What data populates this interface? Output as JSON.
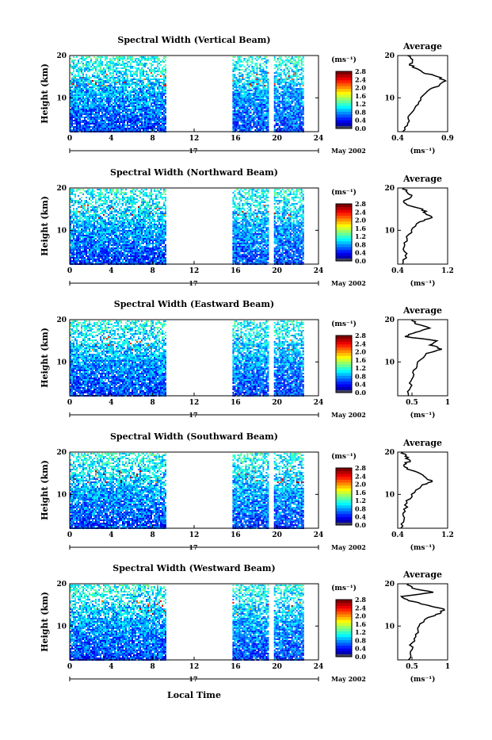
{
  "figure": {
    "xlabel": "Local Time",
    "date_label": "May 2002",
    "day_label": "17",
    "cbar_unit": "(ms⁻¹)",
    "avg_title": "Average",
    "avg_unit": "(ms⁻¹)",
    "ylabel": "Height (km)"
  },
  "chart_data": [
    {
      "type": "heatmap",
      "title": "Spectral Width (Vertical Beam)",
      "xlim": [
        0,
        24
      ],
      "xticks": [
        0,
        4,
        8,
        12,
        16,
        20,
        24
      ],
      "ylim": [
        2,
        20
      ],
      "yticks": [
        10,
        20
      ],
      "data_segments_hours": [
        [
          0,
          9.2
        ],
        [
          15.7,
          19.2
        ],
        [
          19.7,
          22.5
        ]
      ],
      "colorbar": {
        "ticks": [
          0.0,
          0.4,
          0.8,
          1.2,
          1.6,
          2.0,
          2.4,
          2.8
        ],
        "label": "(ms⁻¹)"
      },
      "average_profile": {
        "xlim": [
          0.4,
          0.9
        ],
        "xticks": [
          0.4,
          0.9
        ],
        "heights": [
          2,
          4,
          6,
          8,
          10,
          12,
          13,
          14,
          15,
          16,
          17,
          18,
          19,
          20
        ],
        "values": [
          0.45,
          0.5,
          0.52,
          0.58,
          0.63,
          0.72,
          0.82,
          0.88,
          0.8,
          0.65,
          0.58,
          0.52,
          0.55,
          0.5
        ]
      }
    },
    {
      "type": "heatmap",
      "title": "Spectral Width (Northward Beam)",
      "xlim": [
        0,
        24
      ],
      "xticks": [
        0,
        4,
        8,
        12,
        16,
        20,
        24
      ],
      "ylim": [
        2,
        20
      ],
      "yticks": [
        10,
        20
      ],
      "data_segments_hours": [
        [
          0,
          9.2
        ],
        [
          15.7,
          19.2
        ],
        [
          19.7,
          22.5
        ]
      ],
      "colorbar": {
        "ticks": [
          0.0,
          0.4,
          0.8,
          1.2,
          1.6,
          2.0,
          2.4,
          2.8
        ],
        "label": "(ms⁻¹)"
      },
      "average_profile": {
        "xlim": [
          0.4,
          1.2
        ],
        "xticks": [
          0.4,
          1.2
        ],
        "heights": [
          2,
          4,
          6,
          8,
          10,
          12,
          13,
          14,
          15,
          16,
          17,
          18,
          19,
          20
        ],
        "values": [
          0.48,
          0.52,
          0.5,
          0.55,
          0.62,
          0.75,
          0.95,
          0.85,
          0.8,
          0.55,
          0.5,
          0.62,
          0.55,
          0.5
        ]
      }
    },
    {
      "type": "heatmap",
      "title": "Spectral Width (Eastward Beam)",
      "xlim": [
        0,
        24
      ],
      "xticks": [
        0,
        4,
        8,
        12,
        16,
        20,
        24
      ],
      "ylim": [
        2,
        20
      ],
      "yticks": [
        10,
        20
      ],
      "data_segments_hours": [
        [
          0,
          9.2
        ],
        [
          15.7,
          19.2
        ],
        [
          19.7,
          22.5
        ]
      ],
      "colorbar": {
        "ticks": [
          0.0,
          0.4,
          0.8,
          1.2,
          1.6,
          2.0,
          2.4,
          2.8
        ],
        "label": "(ms⁻¹)"
      },
      "average_profile": {
        "xlim": [
          0.3,
          1.0
        ],
        "xticks": [
          0.5,
          1.0
        ],
        "heights": [
          2,
          4,
          6,
          8,
          10,
          12,
          13,
          14,
          15,
          16,
          17,
          18,
          19,
          20
        ],
        "values": [
          0.45,
          0.48,
          0.5,
          0.52,
          0.58,
          0.7,
          0.92,
          0.75,
          0.85,
          0.4,
          0.55,
          0.75,
          0.55,
          0.5
        ]
      }
    },
    {
      "type": "heatmap",
      "title": "Spectral Width (Southward Beam)",
      "xlim": [
        0,
        24
      ],
      "xticks": [
        0,
        4,
        8,
        12,
        16,
        20,
        24
      ],
      "ylim": [
        2,
        20
      ],
      "yticks": [
        10,
        20
      ],
      "data_segments_hours": [
        [
          0,
          9.2
        ],
        [
          15.7,
          19.2
        ],
        [
          19.7,
          22.5
        ]
      ],
      "colorbar": {
        "ticks": [
          0.0,
          0.4,
          0.8,
          1.2,
          1.6,
          2.0,
          2.4,
          2.8
        ],
        "label": "(ms⁻¹)"
      },
      "average_profile": {
        "xlim": [
          0.4,
          1.2
        ],
        "xticks": [
          0.4,
          1.2
        ],
        "heights": [
          2,
          4,
          6,
          8,
          10,
          12,
          13,
          14,
          15,
          16,
          17,
          18,
          19,
          20
        ],
        "values": [
          0.45,
          0.5,
          0.52,
          0.55,
          0.62,
          0.78,
          0.95,
          0.85,
          0.75,
          0.55,
          0.5,
          0.6,
          0.52,
          0.48
        ]
      }
    },
    {
      "type": "heatmap",
      "title": "Spectral Width (Westward Beam)",
      "xlim": [
        0,
        24
      ],
      "xticks": [
        0,
        4,
        8,
        12,
        16,
        20,
        24
      ],
      "ylim": [
        2,
        20
      ],
      "yticks": [
        10,
        20
      ],
      "data_segments_hours": [
        [
          0,
          9.2
        ],
        [
          15.7,
          19.2
        ],
        [
          19.7,
          22.5
        ]
      ],
      "colorbar": {
        "ticks": [
          0.0,
          0.4,
          0.8,
          1.2,
          1.6,
          2.0,
          2.4,
          2.8
        ],
        "label": "(ms⁻¹)"
      },
      "average_profile": {
        "xlim": [
          0.3,
          1.0
        ],
        "xticks": [
          0.5,
          1.0
        ],
        "heights": [
          2,
          4,
          6,
          8,
          10,
          12,
          13,
          14,
          15,
          16,
          17,
          18,
          19,
          20
        ],
        "values": [
          0.45,
          0.48,
          0.5,
          0.55,
          0.6,
          0.72,
          0.9,
          0.95,
          0.7,
          0.45,
          0.35,
          0.8,
          0.5,
          0.45
        ]
      }
    }
  ]
}
